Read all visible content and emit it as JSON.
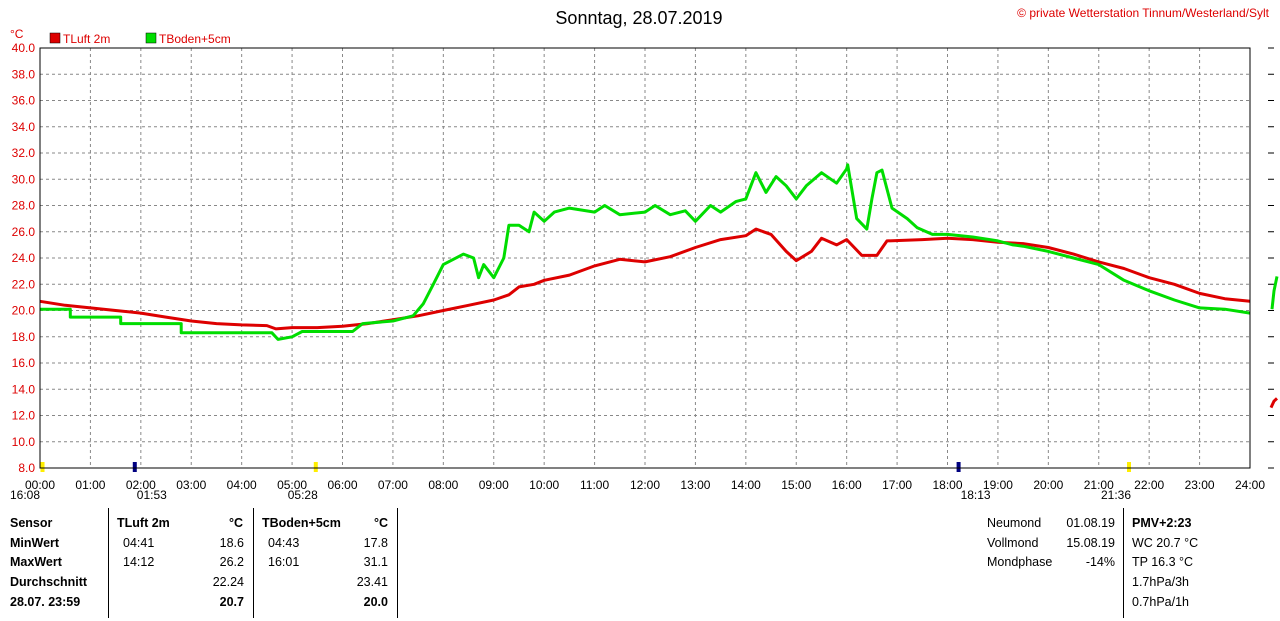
{
  "title": "Sonntag, 28.07.2019",
  "copyright": "© private Wetterstation Tinnum/Westerland/Sylt",
  "chart_data": {
    "type": "line",
    "title": "Sonntag, 28.07.2019",
    "ylabel": "°C",
    "ylim": [
      8.0,
      40.0
    ],
    "yticks": [
      "8.0",
      "10.0",
      "12.0",
      "14.0",
      "16.0",
      "18.0",
      "20.0",
      "22.0",
      "24.0",
      "26.0",
      "28.0",
      "30.0",
      "32.0",
      "34.0",
      "36.0",
      "38.0",
      "40.0"
    ],
    "xlim": [
      0,
      24
    ],
    "xticks": [
      "00:00",
      "01:00",
      "02:00",
      "03:00",
      "04:00",
      "05:00",
      "06:00",
      "07:00",
      "08:00",
      "09:00",
      "10:00",
      "11:00",
      "12:00",
      "13:00",
      "14:00",
      "15:00",
      "16:00",
      "17:00",
      "18:00",
      "19:00",
      "20:00",
      "21:00",
      "22:00",
      "23:00",
      "24:00"
    ],
    "grid": true,
    "legend": "top-left",
    "series": [
      {
        "name": "TLuft 2m",
        "color": "#dd0000",
        "points": [
          [
            0,
            20.7
          ],
          [
            0.5,
            20.4
          ],
          [
            1,
            20.2
          ],
          [
            1.5,
            20.0
          ],
          [
            2,
            19.8
          ],
          [
            2.5,
            19.5
          ],
          [
            3,
            19.2
          ],
          [
            3.5,
            19.0
          ],
          [
            4,
            18.9
          ],
          [
            4.5,
            18.85
          ],
          [
            4.68,
            18.6
          ],
          [
            5,
            18.7
          ],
          [
            5.5,
            18.7
          ],
          [
            6,
            18.8
          ],
          [
            6.5,
            19.0
          ],
          [
            7,
            19.3
          ],
          [
            7.5,
            19.6
          ],
          [
            8,
            20.0
          ],
          [
            8.5,
            20.4
          ],
          [
            9,
            20.8
          ],
          [
            9.3,
            21.2
          ],
          [
            9.5,
            21.8
          ],
          [
            9.8,
            22.0
          ],
          [
            10,
            22.3
          ],
          [
            10.5,
            22.7
          ],
          [
            11,
            23.4
          ],
          [
            11.5,
            23.9
          ],
          [
            12,
            23.7
          ],
          [
            12.5,
            24.1
          ],
          [
            13,
            24.8
          ],
          [
            13.5,
            25.4
          ],
          [
            14,
            25.7
          ],
          [
            14.2,
            26.2
          ],
          [
            14.5,
            25.8
          ],
          [
            14.8,
            24.5
          ],
          [
            15,
            23.8
          ],
          [
            15.3,
            24.5
          ],
          [
            15.5,
            25.5
          ],
          [
            15.8,
            25.0
          ],
          [
            16,
            25.4
          ],
          [
            16.3,
            24.2
          ],
          [
            16.6,
            24.2
          ],
          [
            16.8,
            25.3
          ],
          [
            17.5,
            25.4
          ],
          [
            18,
            25.5
          ],
          [
            18.5,
            25.4
          ],
          [
            19,
            25.2
          ],
          [
            19.5,
            25.1
          ],
          [
            20,
            24.8
          ],
          [
            20.5,
            24.3
          ],
          [
            21,
            23.7
          ],
          [
            21.5,
            23.2
          ],
          [
            22,
            22.5
          ],
          [
            22.5,
            22.0
          ],
          [
            23,
            21.3
          ],
          [
            23.5,
            20.9
          ],
          [
            24,
            20.7
          ]
        ]
      },
      {
        "name": "TBoden+5cm",
        "color": "#00dd00",
        "points": [
          [
            0,
            20.1
          ],
          [
            0.6,
            20.1
          ],
          [
            0.6,
            19.5
          ],
          [
            1.6,
            19.5
          ],
          [
            1.6,
            19.0
          ],
          [
            2.8,
            19.0
          ],
          [
            2.8,
            18.3
          ],
          [
            4.6,
            18.3
          ],
          [
            4.72,
            17.8
          ],
          [
            5,
            18.0
          ],
          [
            5.2,
            18.4
          ],
          [
            6.2,
            18.4
          ],
          [
            6.4,
            19.0
          ],
          [
            7,
            19.2
          ],
          [
            7.4,
            19.6
          ],
          [
            7.6,
            20.5
          ],
          [
            7.8,
            22.0
          ],
          [
            8,
            23.5
          ],
          [
            8.4,
            24.3
          ],
          [
            8.6,
            24.0
          ],
          [
            8.7,
            22.5
          ],
          [
            8.8,
            23.5
          ],
          [
            9,
            22.5
          ],
          [
            9.2,
            24.0
          ],
          [
            9.3,
            26.5
          ],
          [
            9.5,
            26.5
          ],
          [
            9.7,
            26.0
          ],
          [
            9.8,
            27.5
          ],
          [
            10,
            26.8
          ],
          [
            10.2,
            27.5
          ],
          [
            10.5,
            27.8
          ],
          [
            11,
            27.5
          ],
          [
            11.2,
            28.0
          ],
          [
            11.5,
            27.3
          ],
          [
            12,
            27.5
          ],
          [
            12.2,
            28.0
          ],
          [
            12.5,
            27.3
          ],
          [
            12.8,
            27.6
          ],
          [
            13,
            26.8
          ],
          [
            13.3,
            28.0
          ],
          [
            13.5,
            27.5
          ],
          [
            13.8,
            28.3
          ],
          [
            14,
            28.5
          ],
          [
            14.2,
            30.5
          ],
          [
            14.4,
            29.0
          ],
          [
            14.6,
            30.2
          ],
          [
            14.8,
            29.5
          ],
          [
            15,
            28.5
          ],
          [
            15.2,
            29.5
          ],
          [
            15.5,
            30.5
          ],
          [
            15.8,
            29.7
          ],
          [
            16,
            30.8
          ],
          [
            16.02,
            31.1
          ],
          [
            16.2,
            27.0
          ],
          [
            16.4,
            26.2
          ],
          [
            16.5,
            28.5
          ],
          [
            16.6,
            30.5
          ],
          [
            16.7,
            30.7
          ],
          [
            16.9,
            27.8
          ],
          [
            17.2,
            27.0
          ],
          [
            17.4,
            26.3
          ],
          [
            17.7,
            25.8
          ],
          [
            18,
            25.8
          ],
          [
            18.5,
            25.6
          ],
          [
            19,
            25.3
          ],
          [
            19.3,
            25.0
          ],
          [
            19.5,
            24.9
          ],
          [
            20,
            24.5
          ],
          [
            20.5,
            24.0
          ],
          [
            21,
            23.5
          ],
          [
            21.5,
            22.3
          ],
          [
            22,
            21.5
          ],
          [
            22.5,
            20.8
          ],
          [
            23,
            20.2
          ],
          [
            23.5,
            20.1
          ],
          [
            24,
            19.8
          ]
        ]
      }
    ],
    "markers": [
      {
        "label": "16:08",
        "hour": 0.05
      },
      {
        "label": "01:53",
        "hour": 1.88
      },
      {
        "label": "05:28",
        "hour": 5.47
      },
      {
        "label": "18:13",
        "hour": 18.22
      },
      {
        "label": "21:36",
        "hour": 21.6
      }
    ]
  },
  "table": {
    "sensor_header": "Sensor",
    "col1_name": "TLuft 2m",
    "col1_unit": "°C",
    "col2_name": "TBoden+5cm",
    "col2_unit": "°C",
    "rows": [
      {
        "label": "MinWert",
        "t1": "04:41",
        "v1": "18.6",
        "t2": "04:43",
        "v2": "17.8"
      },
      {
        "label": "MaxWert",
        "t1": "14:12",
        "v1": "26.2",
        "t2": "16:01",
        "v2": "31.1"
      },
      {
        "label": "Durchschnitt",
        "t1": "",
        "v1": "22.24",
        "t2": "",
        "v2": "23.41"
      },
      {
        "label": "28.07. 23:59",
        "t1": "",
        "v1": "20.7",
        "t2": "",
        "v2": "20.0"
      }
    ]
  },
  "moon": [
    {
      "label": "Neumond",
      "value": "01.08.19"
    },
    {
      "label": "Vollmond",
      "value": "15.08.19"
    },
    {
      "label": "Mondphase",
      "value": "-14%"
    }
  ],
  "extra": {
    "pmv": "PMV+2:23",
    "lines": [
      "WC 20.7 °C",
      "TP 16.3 °C",
      "1.7hPa/3h",
      "0.7hPa/1h"
    ]
  }
}
